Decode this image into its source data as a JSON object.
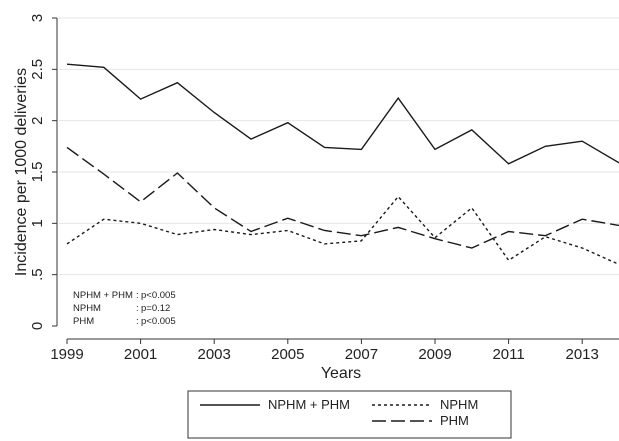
{
  "chart_data": {
    "type": "line",
    "xlabel": "Years",
    "ylabel": "Incidence per 1000 deliveries",
    "xlim": [
      1999,
      2014
    ],
    "ylim": [
      0,
      3
    ],
    "x_ticks": [
      1999,
      2001,
      2003,
      2005,
      2007,
      2009,
      2011,
      2013
    ],
    "x_tick_labels": [
      "1999",
      "2001",
      "2003",
      "2005",
      "2007",
      "2009",
      "2011",
      "2013"
    ],
    "y_ticks": [
      0,
      0.5,
      1,
      1.5,
      2,
      2.5,
      3
    ],
    "y_tick_labels": [
      "0",
      ".5",
      "1",
      "1.5",
      "2",
      "2.5",
      "3"
    ],
    "grid": "horizontal",
    "legend_position": "bottom",
    "x": [
      1999,
      2000,
      2001,
      2002,
      2003,
      2004,
      2005,
      2006,
      2007,
      2008,
      2009,
      2010,
      2011,
      2012,
      2013,
      2014
    ],
    "series": [
      {
        "name": "NPHM + PHM",
        "style": "solid",
        "values": [
          2.55,
          2.52,
          2.21,
          2.37,
          2.08,
          1.82,
          1.98,
          1.74,
          1.72,
          2.22,
          1.72,
          1.91,
          1.58,
          1.75,
          1.8,
          1.59
        ]
      },
      {
        "name": "NPHM",
        "style": "short-dash",
        "values": [
          0.8,
          1.04,
          1.0,
          0.89,
          0.94,
          0.89,
          0.93,
          0.8,
          0.83,
          1.26,
          0.86,
          1.15,
          0.64,
          0.87,
          0.76,
          0.6
        ]
      },
      {
        "name": "PHM",
        "style": "long-dash",
        "values": [
          1.74,
          1.48,
          1.21,
          1.49,
          1.15,
          0.92,
          1.05,
          0.93,
          0.88,
          0.96,
          0.85,
          0.76,
          0.92,
          0.88,
          1.04,
          0.98
        ]
      }
    ],
    "annotations": [
      {
        "label": "NPHM + PHM",
        "sep": ":",
        "value": "p<0.005"
      },
      {
        "label": "NPHM",
        "sep": ":",
        "value": "p=0.12"
      },
      {
        "label": "PHM",
        "sep": ":",
        "value": "p<0.005"
      }
    ]
  }
}
